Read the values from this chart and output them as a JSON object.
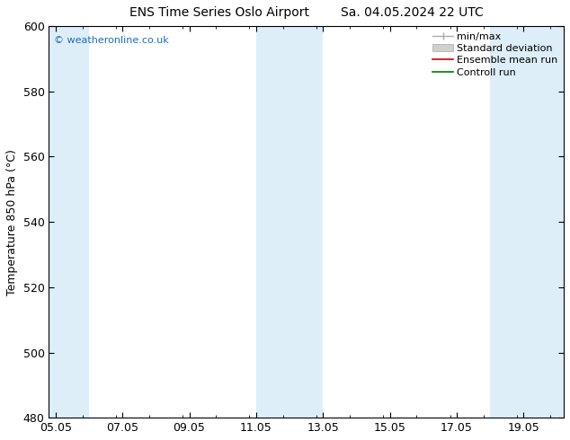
{
  "title_left": "ENS Time Series Oslo Airport",
  "title_right": "Sa. 04.05.2024 22 UTC",
  "ylabel": "Temperature 850 hPa (°C)",
  "ylim": [
    480,
    600
  ],
  "yticks": [
    480,
    500,
    520,
    540,
    560,
    580,
    600
  ],
  "xtick_labels": [
    "05.05",
    "07.05",
    "09.05",
    "11.05",
    "13.05",
    "15.05",
    "17.05",
    "19.05"
  ],
  "xtick_positions": [
    0,
    2,
    4,
    6,
    8,
    10,
    12,
    14
  ],
  "xlim": [
    -0.2,
    15.2
  ],
  "watermark": "© weatheronline.co.uk",
  "watermark_color": "#1a6fbf",
  "bg_color": "#ffffff",
  "plot_bg_color": "#ffffff",
  "shade_bands": [
    {
      "x_start": -0.2,
      "x_end": 1.0,
      "color": "#ddeef9"
    },
    {
      "x_start": 6.0,
      "x_end": 8.0,
      "color": "#ddeef9"
    },
    {
      "x_start": 13.0,
      "x_end": 15.2,
      "color": "#ddeef9"
    }
  ],
  "title_fontsize": 10,
  "label_fontsize": 9,
  "tick_fontsize": 9,
  "legend_fontsize": 8
}
